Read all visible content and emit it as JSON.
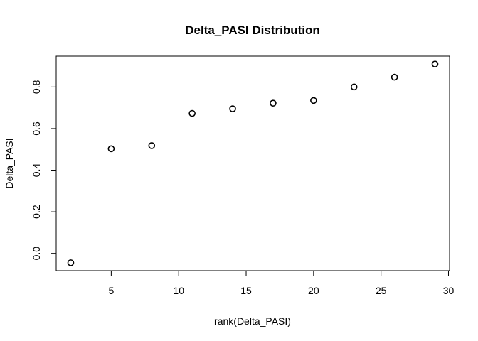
{
  "chart_data": {
    "type": "scatter",
    "title": "Delta_PASI Distribution",
    "xlabel": "rank(Delta_PASI)",
    "ylabel": "Delta_PASI",
    "xlim": [
      0.92,
      30.08
    ],
    "ylim": [
      -0.083,
      0.948
    ],
    "xticks": [
      5,
      10,
      15,
      20,
      25,
      30
    ],
    "xtick_labels": [
      "5",
      "10",
      "15",
      "20",
      "25",
      "30"
    ],
    "yticks": [
      0.0,
      0.2,
      0.4,
      0.6,
      0.8
    ],
    "ytick_labels": [
      "0.0",
      "0.2",
      "0.4",
      "0.6",
      "0.8"
    ],
    "grid": false,
    "marker": "open-circle",
    "points": [
      {
        "x": 2,
        "y": -0.045
      },
      {
        "x": 5,
        "y": 0.503
      },
      {
        "x": 8,
        "y": 0.518
      },
      {
        "x": 11,
        "y": 0.673
      },
      {
        "x": 14,
        "y": 0.695
      },
      {
        "x": 17,
        "y": 0.722
      },
      {
        "x": 20,
        "y": 0.735
      },
      {
        "x": 23,
        "y": 0.8
      },
      {
        "x": 26,
        "y": 0.847
      },
      {
        "x": 29,
        "y": 0.91
      }
    ],
    "colors": {
      "marker": "#000000",
      "axis": "#000000"
    }
  }
}
